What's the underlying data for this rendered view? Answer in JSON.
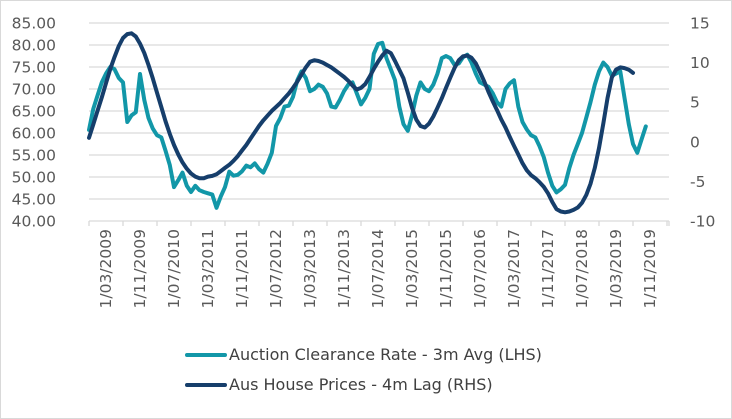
{
  "chart_data": {
    "type": "line",
    "title": "",
    "xlabel": "",
    "ylabel": "",
    "ylabel_right": "",
    "grid": true,
    "legend_position": "bottom",
    "x_start": "2009-03",
    "x_step_months": 1,
    "x_ticks": [
      "1/03/2009",
      "1/11/2009",
      "1/07/2010",
      "1/03/2011",
      "1/11/2011",
      "1/07/2012",
      "1/03/2013",
      "1/11/2013",
      "1/07/2014",
      "1/03/2015",
      "1/11/2015",
      "1/07/2016",
      "1/03/2017",
      "1/11/2017",
      "1/07/2018",
      "1/03/2019",
      "1/11/2019"
    ],
    "y_left": {
      "min": 40,
      "max": 85,
      "step": 5,
      "ticks": [
        "40.00",
        "45.00",
        "50.00",
        "55.00",
        "60.00",
        "65.00",
        "70.00",
        "75.00",
        "80.00",
        "85.00"
      ]
    },
    "y_right": {
      "min": -10,
      "max": 15,
      "step": 5,
      "ticks": [
        "-10",
        "-5",
        "0",
        "5",
        "10",
        "15"
      ]
    },
    "series": [
      {
        "name": "Auction Clearance Rate - 3m Avg (LHS)",
        "axis": "left",
        "color": "#1297A8",
        "values": [
          60.7,
          65.5,
          68.5,
          71.5,
          73.5,
          75,
          74.5,
          72.5,
          71.5,
          62.5,
          64,
          64.7,
          73.4,
          67.5,
          63.4,
          61,
          59.5,
          59,
          56,
          52.7,
          47.7,
          49.3,
          51,
          48,
          46.6,
          48,
          47,
          46.6,
          46.3,
          46,
          43,
          45.6,
          47.7,
          51.2,
          50.3,
          50.5,
          51.3,
          52.6,
          52.2,
          53.1,
          51.8,
          51,
          53,
          55.5,
          61.6,
          63.4,
          66,
          66.2,
          68.2,
          72,
          74,
          72.5,
          69.5,
          70,
          71,
          70.5,
          69,
          66,
          65.8,
          67.5,
          69.5,
          71,
          71.5,
          69,
          66.5,
          68,
          70,
          78,
          80.2,
          80.5,
          77,
          74.5,
          72,
          66,
          62,
          60.5,
          64,
          68.5,
          71.5,
          70,
          69.5,
          71,
          73.5,
          77,
          77.5,
          77,
          75.5,
          75.8,
          77.2,
          77.8,
          76,
          73.5,
          71.5,
          71,
          70.5,
          69,
          67,
          66,
          70,
          71.3,
          72,
          66,
          62.5,
          60.8,
          59.5,
          59,
          57,
          54.5,
          51,
          48,
          46.5,
          47.2,
          48.2,
          52,
          55,
          57.5,
          60,
          63.5,
          67,
          71,
          74,
          76,
          75,
          73,
          73.5,
          74,
          68,
          62,
          57.5,
          55.5,
          58.5,
          61.5
        ]
      },
      {
        "name": "Aus House Prices - 4m Lag (RHS)",
        "axis": "right",
        "color": "#163E6B",
        "values": [
          0.5,
          2.2,
          3.9,
          5.6,
          7.4,
          9.2,
          10.7,
          12.1,
          13.1,
          13.6,
          13.7,
          13.3,
          12.4,
          11.2,
          9.7,
          8,
          6.2,
          4.4,
          2.6,
          1,
          -0.4,
          -1.6,
          -2.6,
          -3.4,
          -4,
          -4.4,
          -4.6,
          -4.6,
          -4.4,
          -4.3,
          -4.1,
          -3.7,
          -3.3,
          -2.9,
          -2.4,
          -1.8,
          -1.1,
          -0.4,
          0.4,
          1.2,
          2,
          2.7,
          3.3,
          3.9,
          4.4,
          4.9,
          5.5,
          6.1,
          6.8,
          7.6,
          8.5,
          9.4,
          10.1,
          10.3,
          10.2,
          10,
          9.7,
          9.4,
          9,
          8.6,
          8.2,
          7.7,
          7.1,
          6.6,
          6.8,
          7.3,
          8.2,
          9.2,
          10.1,
          10.9,
          11.5,
          11.2,
          10.2,
          9.1,
          8,
          6.2,
          4.3,
          2.8,
          2,
          1.8,
          2.3,
          3.2,
          4.3,
          5.5,
          6.8,
          8.1,
          9.3,
          10.3,
          10.8,
          10.9,
          10.6,
          9.9,
          8.8,
          7.6,
          6.3,
          5.1,
          4,
          2.8,
          1.8,
          0.6,
          -0.5,
          -1.6,
          -2.7,
          -3.6,
          -4.2,
          -4.6,
          -5.1,
          -5.7,
          -6.5,
          -7.6,
          -8.5,
          -8.8,
          -8.9,
          -8.8,
          -8.6,
          -8.3,
          -7.7,
          -6.7,
          -5.3,
          -3.3,
          -0.8,
          2.3,
          5.5,
          8.1,
          9.1,
          9.4,
          9.3,
          9.1,
          8.7
        ]
      }
    ]
  }
}
